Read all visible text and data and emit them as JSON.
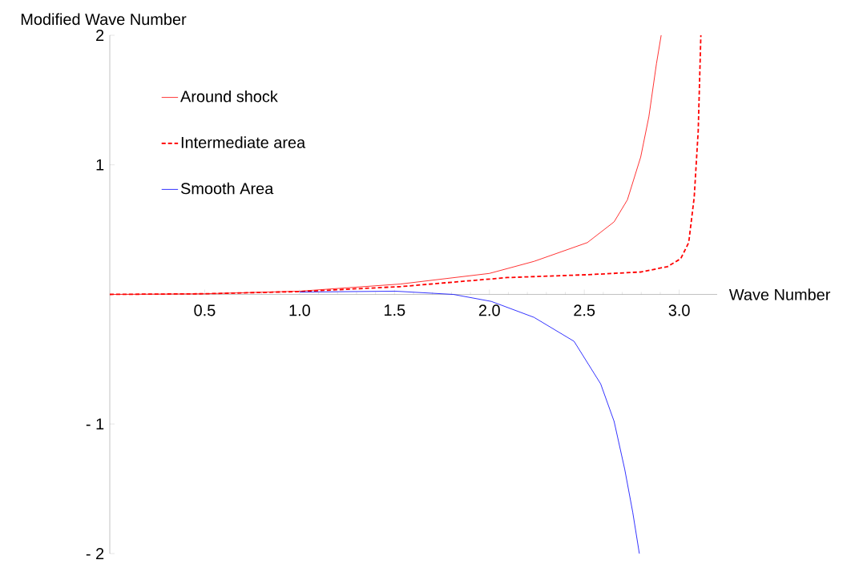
{
  "chart_data": {
    "type": "line",
    "xlabel": "Wave Number",
    "ylabel": "Modified Wave Number",
    "xlim": [
      0,
      3.2
    ],
    "ylim": [
      -2,
      2
    ],
    "xticks": [
      0.5,
      {
        "value": 1,
        "label": "1.0"
      },
      1.5,
      {
        "value": 2,
        "label": "2.0"
      },
      2.5,
      {
        "value": 3,
        "label": "3.0"
      }
    ],
    "yticks": [
      {
        "value": -2,
        "label": "- 2"
      },
      {
        "value": -1,
        "label": "- 1"
      },
      1,
      2
    ],
    "legend": "top left",
    "grid": false,
    "series": [
      {
        "name": "Around shock",
        "color": "#ff0000",
        "line_style": "solid",
        "x": [
          0,
          0.5,
          1.0,
          1.53,
          2.0,
          2.235,
          2.516,
          2.657,
          2.727,
          2.797,
          2.84,
          2.88,
          2.905
        ],
        "values": [
          0,
          0.005,
          0.025,
          0.08,
          0.162,
          0.255,
          0.4,
          0.56,
          0.73,
          1.06,
          1.37,
          1.78,
          2.0
        ]
      },
      {
        "name": "Intermediate area",
        "color": "#ff0000",
        "line_style": "dashed",
        "x": [
          0,
          0.5,
          1.0,
          1.53,
          2.094,
          2.516,
          2.797,
          2.938,
          3.008,
          3.05,
          3.079,
          3.1,
          3.114
        ],
        "values": [
          0,
          0.005,
          0.022,
          0.06,
          0.13,
          0.152,
          0.173,
          0.214,
          0.276,
          0.4,
          0.75,
          1.26,
          2.0
        ]
      },
      {
        "name": "Smooth Area",
        "color": "#0000ff",
        "line_style": "solid",
        "x": [
          1.0,
          1.503,
          1.81,
          2.01,
          2.235,
          2.446,
          2.586,
          2.657,
          2.713,
          2.755,
          2.79
        ],
        "values": [
          0.018,
          0.025,
          0,
          -0.054,
          -0.177,
          -0.362,
          -0.69,
          -0.98,
          -1.35,
          -1.68,
          -2.0
        ]
      }
    ]
  }
}
